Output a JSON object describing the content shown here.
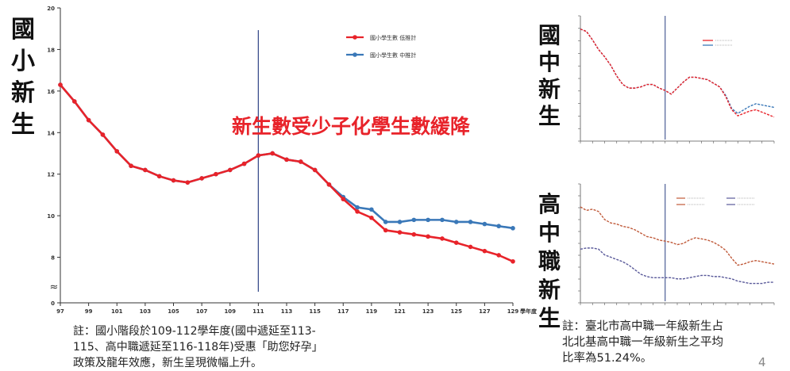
{
  "labels": {
    "primary": [
      "國",
      "小",
      "新",
      "生"
    ],
    "junior": [
      "國",
      "中",
      "新",
      "生"
    ],
    "senior": [
      "高",
      "中",
      "職",
      "新",
      "生"
    ]
  },
  "notes": {
    "main": "註：國小階段於109-112學年度(國中遞延至113-\n115、高中職遞延至116-118年)受惠「助您好孕」\n政策及龍年效應，新生呈現微幅上升。",
    "right": "註：臺北市高中職一年級新生占\n北北基高中職一年級新生之平均\n比率為51.24%。"
  },
  "page_number": "4",
  "colors": {
    "red": "#e8232a",
    "blue": "#3a78b8",
    "marker_line": "#3b4f8c"
  },
  "chart_data": [
    {
      "id": "primary",
      "type": "line",
      "headline": "新生數受少子化學生數緩降",
      "x": [
        97,
        98,
        99,
        100,
        101,
        102,
        103,
        104,
        105,
        106,
        107,
        108,
        109,
        110,
        111,
        112,
        113,
        114,
        115,
        116,
        117,
        118,
        119,
        120,
        121,
        122,
        123,
        124,
        125,
        126,
        127,
        128,
        129
      ],
      "xticks": [
        97,
        99,
        101,
        103,
        105,
        107,
        109,
        111,
        113,
        115,
        117,
        119,
        121,
        123,
        125,
        127,
        129
      ],
      "xlabel": "學年度",
      "yticks": [
        0,
        8,
        10,
        12,
        14,
        16,
        18,
        20
      ],
      "ylim": [
        6.8,
        20
      ],
      "axis_break": "≈",
      "marker_x": 111,
      "grid": false,
      "legend_position": "top-right",
      "series": [
        {
          "name": "國小學生數 低推計",
          "color": "#e8232a",
          "values": [
            16.3,
            15.5,
            14.6,
            13.9,
            13.1,
            12.4,
            12.2,
            11.9,
            11.7,
            11.6,
            11.8,
            12.0,
            12.2,
            12.5,
            12.9,
            13.0,
            12.7,
            12.6,
            12.2,
            11.5,
            10.8,
            10.2,
            9.9,
            9.3,
            9.2,
            9.1,
            9.0,
            8.9,
            8.7,
            8.5,
            8.3,
            8.1,
            7.8
          ]
        },
        {
          "name": "國小學生數 中推計",
          "color": "#3a78b8",
          "values": [
            16.3,
            15.5,
            14.6,
            13.9,
            13.1,
            12.4,
            12.2,
            11.9,
            11.7,
            11.6,
            11.8,
            12.0,
            12.2,
            12.5,
            12.9,
            13.0,
            12.7,
            12.6,
            12.2,
            11.5,
            10.9,
            10.4,
            10.3,
            9.7,
            9.7,
            9.8,
            9.8,
            9.8,
            9.7,
            9.7,
            9.6,
            9.5,
            9.4
          ]
        }
      ]
    },
    {
      "id": "junior",
      "type": "line",
      "x_count": 33,
      "marker_index": 14,
      "legend_position": "top-right",
      "series": [
        {
          "color": "#e8232a",
          "values": [
            0.93,
            0.91,
            0.84,
            0.76,
            0.7,
            0.63,
            0.54,
            0.47,
            0.44,
            0.44,
            0.45,
            0.47,
            0.47,
            0.44,
            0.42,
            0.39,
            0.44,
            0.49,
            0.53,
            0.53,
            0.52,
            0.51,
            0.48,
            0.45,
            0.37,
            0.26,
            0.21,
            0.23,
            0.25,
            0.26,
            0.24,
            0.22,
            0.2
          ]
        },
        {
          "color": "#3a78b8",
          "values": [
            0.93,
            0.91,
            0.84,
            0.76,
            0.7,
            0.63,
            0.54,
            0.47,
            0.44,
            0.44,
            0.45,
            0.47,
            0.47,
            0.44,
            0.42,
            0.39,
            0.44,
            0.49,
            0.53,
            0.53,
            0.52,
            0.51,
            0.48,
            0.45,
            0.38,
            0.27,
            0.23,
            0.26,
            0.29,
            0.31,
            0.3,
            0.29,
            0.28
          ]
        }
      ]
    },
    {
      "id": "senior",
      "type": "line",
      "x_count": 33,
      "marker_index": 14,
      "legend_position": "top-right",
      "series": [
        {
          "color": "#c05a3a",
          "values": [
            0.84,
            0.81,
            0.82,
            0.8,
            0.73,
            0.7,
            0.69,
            0.67,
            0.66,
            0.64,
            0.61,
            0.58,
            0.57,
            0.55,
            0.54,
            0.53,
            0.51,
            0.52,
            0.55,
            0.57,
            0.56,
            0.55,
            0.53,
            0.5,
            0.46,
            0.39,
            0.33,
            0.34,
            0.36,
            0.37,
            0.36,
            0.35,
            0.34
          ]
        },
        {
          "color": "#5a5a9a",
          "values": [
            0.47,
            0.48,
            0.48,
            0.47,
            0.42,
            0.4,
            0.38,
            0.36,
            0.33,
            0.29,
            0.25,
            0.23,
            0.22,
            0.22,
            0.22,
            0.22,
            0.21,
            0.21,
            0.22,
            0.23,
            0.24,
            0.24,
            0.23,
            0.23,
            0.22,
            0.21,
            0.19,
            0.18,
            0.17,
            0.17,
            0.17,
            0.18,
            0.18
          ]
        }
      ]
    }
  ]
}
